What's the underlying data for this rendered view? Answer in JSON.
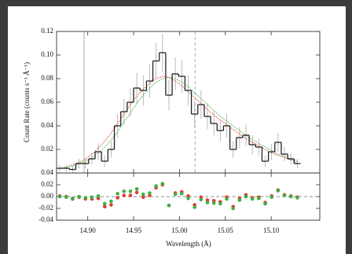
{
  "chart_data": [
    {
      "type": "histogram",
      "y_label": "Count Rate (counts s⁻¹ Å⁻¹)",
      "bins": [
        14.866,
        14.873,
        14.88,
        14.887,
        14.894,
        14.901,
        14.908,
        14.915,
        14.922,
        14.929,
        14.936,
        14.943,
        14.95,
        14.957,
        14.964,
        14.971,
        14.978,
        14.985,
        14.992,
        14.999,
        15.006,
        15.013,
        15.02,
        15.027,
        15.034,
        15.041,
        15.048,
        15.055,
        15.062,
        15.069,
        15.076,
        15.083,
        15.09,
        15.097,
        15.104,
        15.111,
        15.118,
        15.125,
        15.132
      ],
      "values": [
        0.004,
        0.004,
        0.003,
        0.008,
        0.008,
        0.012,
        0.018,
        0.01,
        0.02,
        0.04,
        0.052,
        0.06,
        0.072,
        0.07,
        0.078,
        0.095,
        0.102,
        0.066,
        0.084,
        0.082,
        0.07,
        0.05,
        0.058,
        0.048,
        0.042,
        0.036,
        0.04,
        0.02,
        0.03,
        0.032,
        0.024,
        0.022,
        0.01,
        0.018,
        0.026,
        0.016,
        0.012,
        0.008
      ],
      "errors": [
        0.003,
        0.003,
        0.003,
        0.004,
        0.004,
        0.005,
        0.007,
        0.005,
        0.007,
        0.01,
        0.011,
        0.012,
        0.013,
        0.013,
        0.014,
        0.015,
        0.016,
        0.013,
        0.014,
        0.014,
        0.013,
        0.011,
        0.012,
        0.011,
        0.01,
        0.009,
        0.01,
        0.007,
        0.009,
        0.009,
        0.008,
        0.007,
        0.005,
        0.007,
        0.008,
        0.006,
        0.005,
        0.004
      ],
      "color": "#222222",
      "error_color": "#aaaaaa",
      "series": [
        {
          "color": "#e03c31",
          "values": [
            0.004,
            0.005,
            0.007,
            0.009,
            0.012,
            0.016,
            0.021,
            0.027,
            0.034,
            0.042,
            0.05,
            0.058,
            0.065,
            0.071,
            0.076,
            0.08,
            0.082,
            0.081,
            0.078,
            0.074,
            0.069,
            0.064,
            0.059,
            0.054,
            0.049,
            0.045,
            0.041,
            0.037,
            0.033,
            0.029,
            0.026,
            0.023,
            0.02,
            0.017,
            0.015,
            0.013,
            0.011,
            0.009
          ]
        },
        {
          "color": "#3cb043",
          "values": [
            0.004,
            0.005,
            0.006,
            0.008,
            0.01,
            0.013,
            0.017,
            0.022,
            0.028,
            0.035,
            0.043,
            0.051,
            0.059,
            0.066,
            0.072,
            0.077,
            0.08,
            0.081,
            0.08,
            0.077,
            0.073,
            0.068,
            0.063,
            0.058,
            0.053,
            0.048,
            0.044,
            0.04,
            0.036,
            0.032,
            0.028,
            0.025,
            0.022,
            0.019,
            0.016,
            0.014,
            0.012,
            0.01
          ]
        }
      ],
      "markers": [
        {
          "x": 14.896,
          "style": "solid"
        },
        {
          "x": 15.017,
          "style": "dashed"
        }
      ],
      "xlim": [
        14.866,
        15.153
      ],
      "ylim": [
        0,
        0.12
      ],
      "yticks": [
        {
          "value": 0.02,
          "label": "0.02"
        },
        {
          "value": 0.04,
          "label": "0.04"
        },
        {
          "value": 0.06,
          "label": "0.06"
        },
        {
          "value": 0.08,
          "label": "0.08"
        },
        {
          "value": 0.1,
          "label": "0.10"
        },
        {
          "value": 0.12,
          "label": "0.12"
        }
      ]
    },
    {
      "type": "scatter",
      "x_label": "Wavelength (Å)",
      "x": [
        14.8695,
        14.8765,
        14.8835,
        14.8905,
        14.8975,
        14.9045,
        14.9115,
        14.9185,
        14.9255,
        14.9325,
        14.9395,
        14.9465,
        14.9535,
        14.9605,
        14.9675,
        14.9745,
        14.9815,
        14.9885,
        14.9955,
        15.0025,
        15.0095,
        15.0165,
        15.0235,
        15.0305,
        15.0375,
        15.0445,
        15.0515,
        15.0585,
        15.0655,
        15.0725,
        15.0795,
        15.0865,
        15.0935,
        15.1005,
        15.1075,
        15.1145,
        15.1215,
        15.1285
      ],
      "series": [
        {
          "color": "#e03c31",
          "values": [
            0.001,
            0.0,
            -0.004,
            -0.001,
            -0.004,
            -0.004,
            -0.003,
            -0.017,
            -0.014,
            -0.002,
            0.002,
            0.002,
            0.007,
            -0.001,
            0.002,
            0.015,
            0.02,
            -0.015,
            0.006,
            0.008,
            0.001,
            -0.014,
            -0.001,
            -0.006,
            -0.007,
            -0.009,
            -0.001,
            -0.017,
            -0.003,
            0.003,
            -0.002,
            -0.001,
            -0.01,
            0.001,
            0.011,
            0.003,
            0.001,
            -0.001
          ]
        },
        {
          "color": "#3cb043",
          "values": [
            0.0,
            -0.001,
            -0.003,
            0.0,
            -0.002,
            -0.001,
            0.001,
            -0.012,
            -0.008,
            0.005,
            0.009,
            0.009,
            0.013,
            0.004,
            0.006,
            0.018,
            0.022,
            -0.015,
            0.004,
            0.005,
            -0.003,
            -0.018,
            -0.005,
            -0.01,
            -0.011,
            -0.012,
            -0.004,
            -0.02,
            -0.006,
            0.0,
            -0.004,
            -0.003,
            -0.012,
            -0.001,
            0.01,
            0.002,
            0.0,
            -0.002
          ]
        }
      ],
      "xlim": [
        14.866,
        15.153
      ],
      "ylim": [
        -0.04,
        0.04
      ],
      "xticks": [
        {
          "value": 14.9,
          "label": "14.90"
        },
        {
          "value": 14.95,
          "label": "14.95"
        },
        {
          "value": 15.0,
          "label": "15.00"
        },
        {
          "value": 15.05,
          "label": "15.05"
        },
        {
          "value": 15.1,
          "label": "15.10"
        }
      ],
      "yticks": [
        {
          "value": 0.04,
          "label": "0.04"
        },
        {
          "value": 0.02,
          "label": "0.02"
        },
        {
          "value": 0.0,
          "label": "0.00"
        },
        {
          "value": -0.02,
          "label": "-0.02"
        },
        {
          "value": -0.04,
          "label": "-0.04"
        }
      ]
    }
  ]
}
